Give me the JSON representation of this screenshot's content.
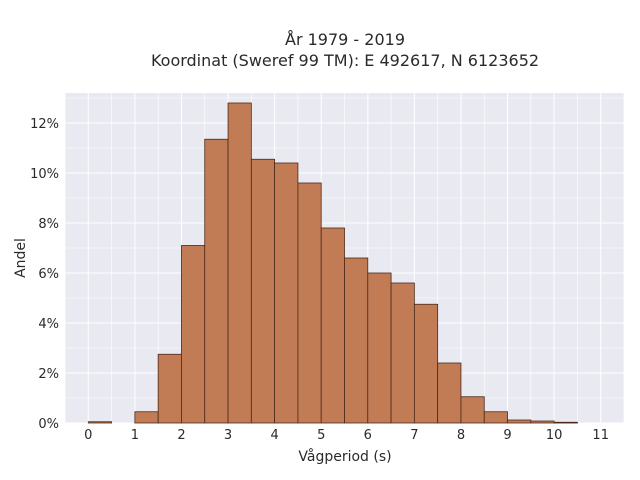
{
  "chart_data": {
    "type": "bar",
    "title_lines": [
      "År 1979 - 2019",
      "Koordinat (Sweref 99 TM): E 492617, N 6123652"
    ],
    "xlabel": "Vågperiod (s)",
    "ylabel": "Andel",
    "xlim": [
      -0.5,
      11.5
    ],
    "ylim": [
      0,
      13.2
    ],
    "x_ticks": [
      0,
      1,
      2,
      3,
      4,
      5,
      6,
      7,
      8,
      9,
      10,
      11
    ],
    "y_ticks": [
      0,
      2,
      4,
      6,
      8,
      10,
      12
    ],
    "y_tick_labels": [
      "0%",
      "2%",
      "4%",
      "6%",
      "8%",
      "10%",
      "12%"
    ],
    "bin_width": 0.5,
    "bins": [
      {
        "start": 0.0,
        "end": 0.5,
        "value": 0.05
      },
      {
        "start": 1.0,
        "end": 1.5,
        "value": 0.45
      },
      {
        "start": 1.5,
        "end": 2.0,
        "value": 2.75
      },
      {
        "start": 2.0,
        "end": 2.5,
        "value": 7.1
      },
      {
        "start": 2.5,
        "end": 3.0,
        "value": 11.35
      },
      {
        "start": 3.0,
        "end": 3.5,
        "value": 12.8
      },
      {
        "start": 3.5,
        "end": 4.0,
        "value": 10.55
      },
      {
        "start": 4.0,
        "end": 4.5,
        "value": 10.4
      },
      {
        "start": 4.5,
        "end": 5.0,
        "value": 9.6
      },
      {
        "start": 5.0,
        "end": 5.5,
        "value": 7.8
      },
      {
        "start": 5.5,
        "end": 6.0,
        "value": 6.6
      },
      {
        "start": 6.0,
        "end": 6.5,
        "value": 6.0
      },
      {
        "start": 6.5,
        "end": 7.0,
        "value": 5.6
      },
      {
        "start": 7.0,
        "end": 7.5,
        "value": 4.75
      },
      {
        "start": 7.5,
        "end": 8.0,
        "value": 2.4
      },
      {
        "start": 8.0,
        "end": 8.5,
        "value": 1.05
      },
      {
        "start": 8.5,
        "end": 9.0,
        "value": 0.45
      },
      {
        "start": 9.0,
        "end": 9.5,
        "value": 0.12
      },
      {
        "start": 9.5,
        "end": 10.0,
        "value": 0.08
      },
      {
        "start": 10.0,
        "end": 10.5,
        "value": 0.03
      }
    ],
    "grid": true,
    "colors": {
      "bar_fill": "#c17c56",
      "bar_edge": "#4a2a1a",
      "plot_background": "#e9e9f1",
      "grid": "#ffffff"
    }
  }
}
